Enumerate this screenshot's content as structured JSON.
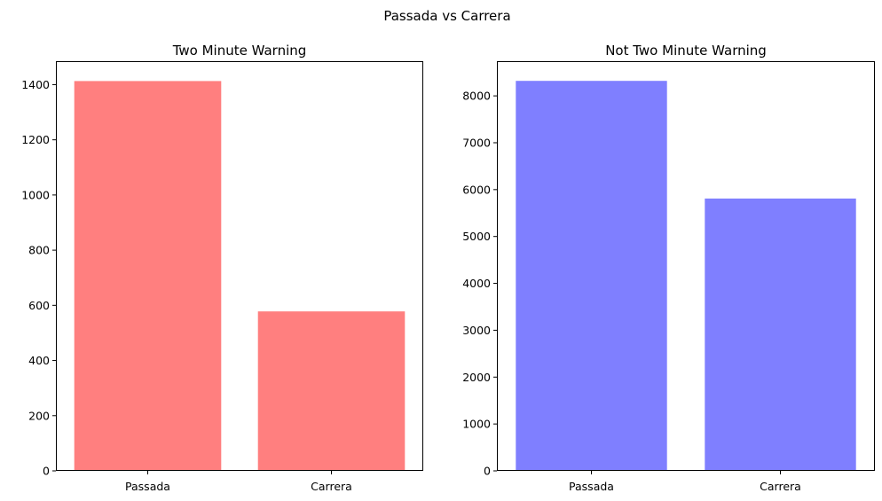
{
  "figure": {
    "suptitle": "Passada vs Carrera"
  },
  "chart_data": [
    {
      "type": "bar",
      "title": "Two Minute Warning",
      "categories": [
        "Passada",
        "Carrera"
      ],
      "values": [
        1413,
        578
      ],
      "ylim": [
        0,
        1485
      ],
      "yticks": [
        0,
        200,
        400,
        600,
        800,
        1000,
        1200,
        1400
      ],
      "color": "#ff7f7f",
      "xlabel": "",
      "ylabel": "",
      "grid": false
    },
    {
      "type": "bar",
      "title": "Not Two Minute Warning",
      "categories": [
        "Passada",
        "Carrera"
      ],
      "values": [
        8320,
        5810
      ],
      "ylim": [
        0,
        8740
      ],
      "yticks": [
        0,
        1000,
        2000,
        3000,
        4000,
        5000,
        6000,
        7000,
        8000
      ],
      "color": "#7f7fff",
      "xlabel": "",
      "ylabel": "",
      "grid": false
    }
  ]
}
